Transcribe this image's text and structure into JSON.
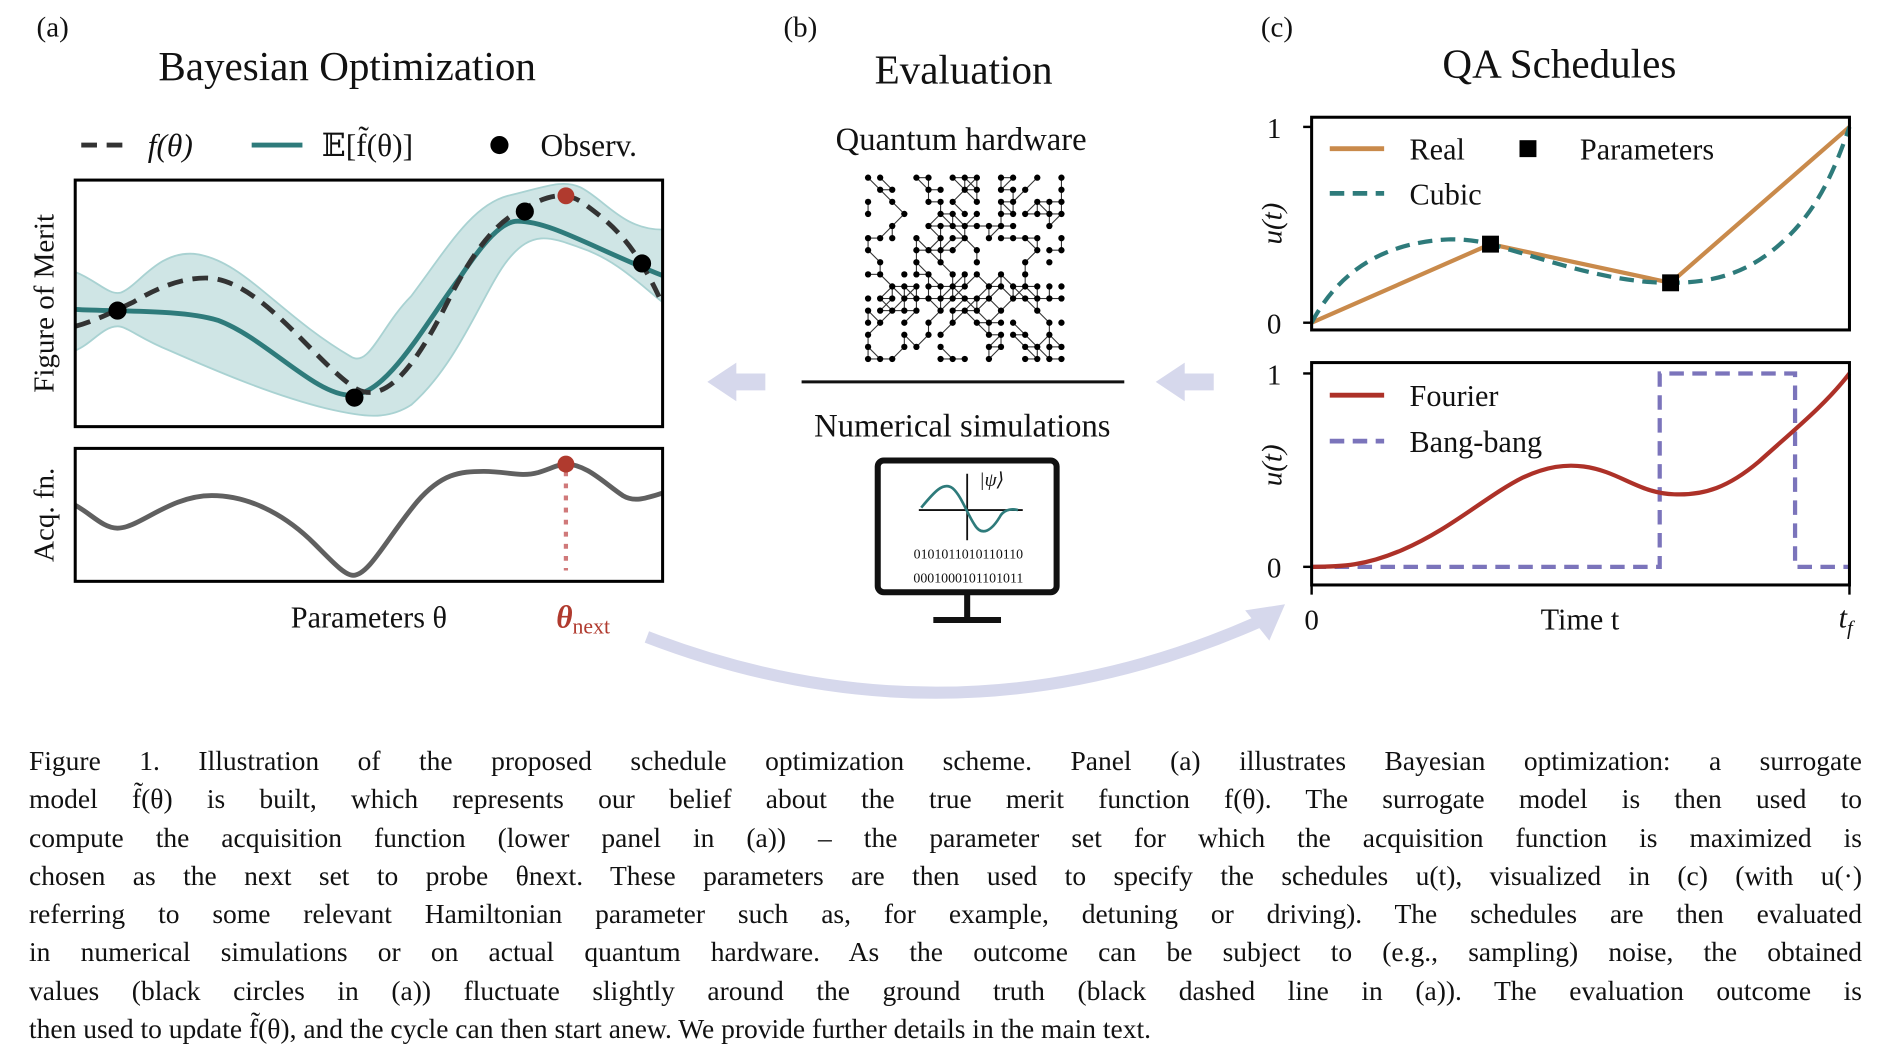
{
  "panel_a": {
    "label": "(a)",
    "title": "Bayesian Optimization",
    "legend": {
      "true_function": "f(θ)",
      "surrogate_mean": "𝔼[f̃(θ)]",
      "observations": "Observ."
    },
    "ylabel_top": "Figure of Merit",
    "ylabel_bottom": "Acq. fn.",
    "xlabel": "Parameters θ",
    "next_label": "θ",
    "next_sub": "next",
    "colors": {
      "true_function": "#333333",
      "surrogate_mean": "#2e7b7b",
      "band": "#cfe5e5",
      "next_point": "#b03a2e",
      "acquisition": "#606060"
    }
  },
  "panel_b": {
    "label": "(b)",
    "title": "Evaluation",
    "hardware_label": "Quantum hardware",
    "simulation_label": "Numerical simulations",
    "psi_label": "|ψ⟩",
    "binary_line_1": "0101011010110110",
    "binary_line_2": "0001000101101011"
  },
  "panel_c": {
    "label": "(c)",
    "title": "QA Schedules",
    "top_ylabel": "u(t)",
    "bottom_ylabel": "u(t)",
    "yticks": [
      "0",
      "1"
    ],
    "xticks": [
      "0",
      "t_f"
    ],
    "xtick_start": "0",
    "xtick_end_base": "t",
    "xtick_end_sub": "f",
    "xlabel": "Time t",
    "legend_top": {
      "real": "Real",
      "parameters": "Parameters",
      "cubic": "Cubic"
    },
    "legend_bottom": {
      "fourier": "Fourier",
      "bangbang": "Bang-bang"
    },
    "colors": {
      "real": "#c98a4b",
      "cubic": "#2e7b7b",
      "fourier": "#ad3128",
      "bangbang": "#7b74bb"
    }
  },
  "arrow_color": "#d6d8ec",
  "caption": {
    "lines": [
      "Figure 1. Illustration of the proposed schedule optimization scheme. Panel (a) illustrates Bayesian optimization: a surrogate",
      "model f̃(θ) is built, which represents our belief about the true merit function f(θ). The surrogate model is then used to",
      "compute the acquisition function (lower panel in (a)) – the parameter set for which the acquisition function is maximized is",
      "chosen as the next set to probe θnext. These parameters are then used to specify the schedules u(t), visualized in (c) (with u(·)",
      "referring to some relevant Hamiltonian parameter such as, for example, detuning or driving). The schedules are then evaluated",
      "in numerical simulations or on actual quantum hardware. As the outcome can be subject to (e.g., sampling) noise, the obtained",
      "values (black circles in (a)) fluctuate slightly around the ground truth (black dashed line in (a)). The evaluation outcome is",
      "then used to update f̃(θ), and the cycle can then start anew. We provide further details in the main text."
    ]
  }
}
